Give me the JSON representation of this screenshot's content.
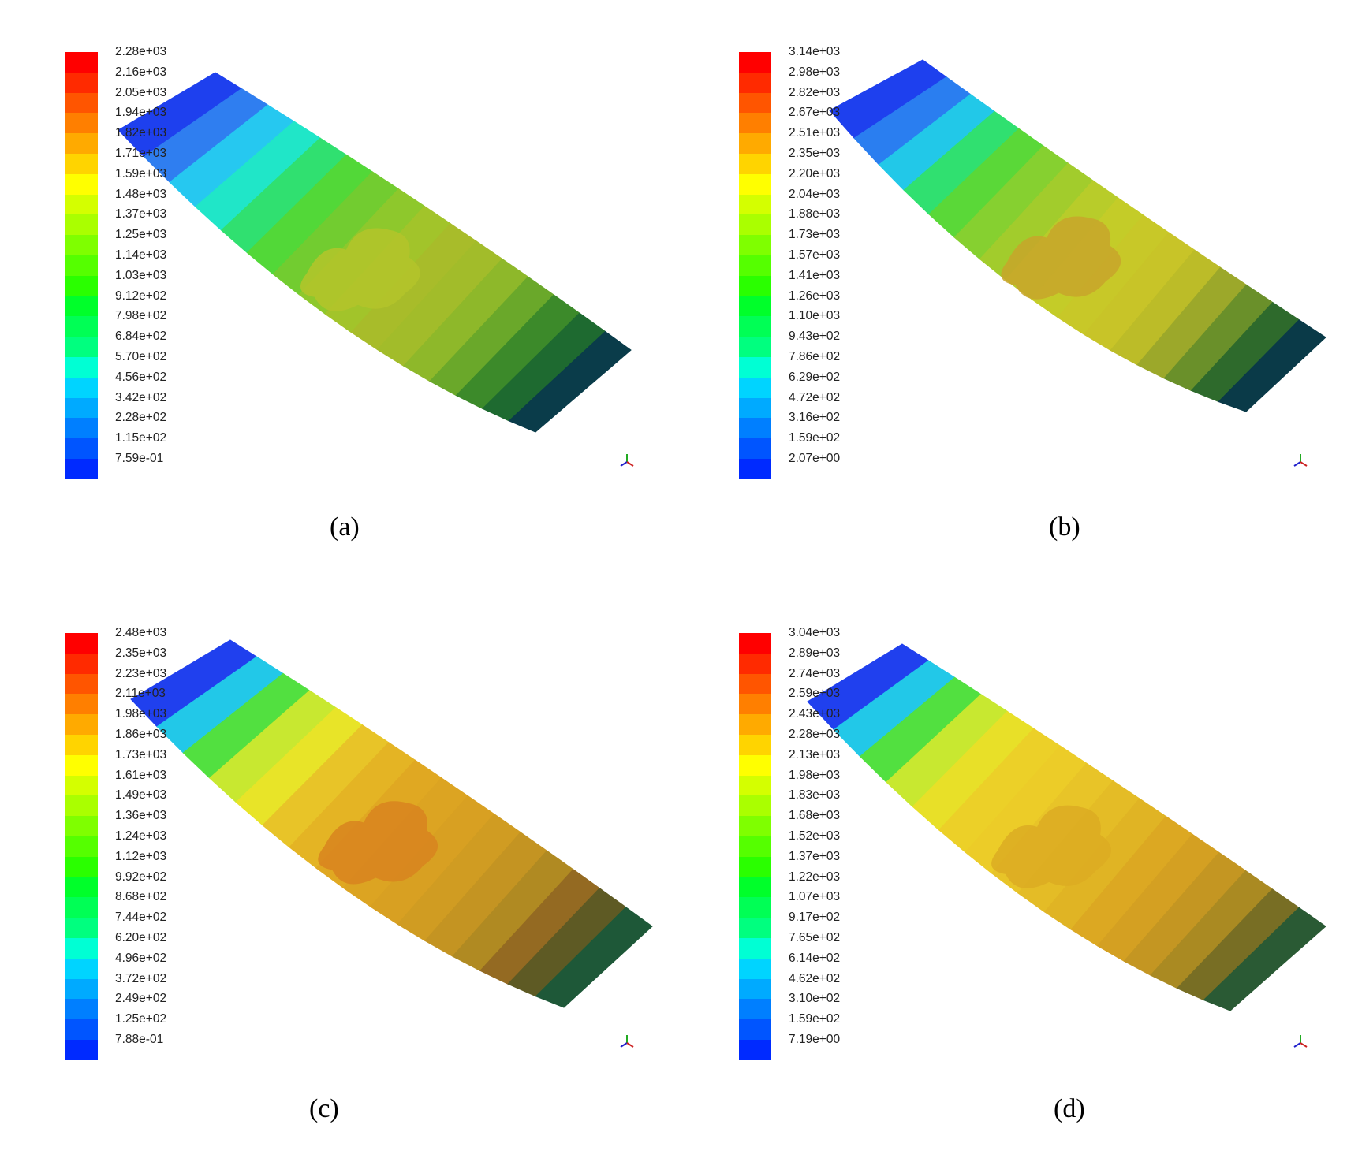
{
  "figure": {
    "panels": [
      {
        "id": "a",
        "caption": "(a)",
        "legend_labels": [
          "2.28e+03",
          "2.16e+03",
          "2.05e+03",
          "1.94e+03",
          "1.82e+03",
          "1.71e+03",
          "1.59e+03",
          "1.48e+03",
          "1.37e+03",
          "1.25e+03",
          "1.14e+03",
          "1.03e+03",
          "9.12e+02",
          "7.98e+02",
          "6.84e+02",
          "5.70e+02",
          "4.56e+02",
          "3.42e+02",
          "2.28e+02",
          "1.15e+02",
          "7.59e-01"
        ],
        "band_colors": [
          "#1e40ee",
          "#2f7ef0",
          "#26c8f0",
          "#20e6c8",
          "#30e070",
          "#52d838",
          "#72cc30",
          "#8ec82c",
          "#a2c42a",
          "#a8bc2a",
          "#a2bc2a",
          "#8eb82a",
          "#6aa82a",
          "#3c8a2a",
          "#1e6a30",
          "#0a3c4a"
        ],
        "patch_color": "#b4c42a"
      },
      {
        "id": "b",
        "caption": "(b)",
        "legend_labels": [
          "3.14e+03",
          "2.98e+03",
          "2.82e+03",
          "2.67e+03",
          "2.51e+03",
          "2.35e+03",
          "2.20e+03",
          "2.04e+03",
          "1.88e+03",
          "1.73e+03",
          "1.57e+03",
          "1.41e+03",
          "1.26e+03",
          "1.10e+03",
          "9.43e+02",
          "7.86e+02",
          "6.29e+02",
          "4.72e+02",
          "3.16e+02",
          "1.59e+02",
          "2.07e+00"
        ],
        "band_colors": [
          "#1e40ee",
          "#2a7ef0",
          "#22c8e8",
          "#30e070",
          "#5ad838",
          "#86d030",
          "#a2cc2c",
          "#b8cc2a",
          "#c4cc28",
          "#c8c828",
          "#c8c428",
          "#bcbc28",
          "#9ca82a",
          "#6a902a",
          "#2e6a2c",
          "#0a3a48"
        ],
        "patch_color": "#c8a42a"
      },
      {
        "id": "c",
        "caption": "(c)",
        "legend_labels": [
          "2.48e+03",
          "2.35e+03",
          "2.23e+03",
          "2.11e+03",
          "1.98e+03",
          "1.86e+03",
          "1.73e+03",
          "1.61e+03",
          "1.49e+03",
          "1.36e+03",
          "1.24e+03",
          "1.12e+03",
          "9.92e+02",
          "8.68e+02",
          "7.44e+02",
          "6.20e+02",
          "4.96e+02",
          "3.72e+02",
          "2.49e+02",
          "1.25e+02",
          "7.88e-01"
        ],
        "band_colors": [
          "#2040ee",
          "#22c8e8",
          "#52e040",
          "#c8e830",
          "#e8e428",
          "#e8c428",
          "#e4b424",
          "#e0a822",
          "#dca422",
          "#d8a022",
          "#d09c22",
          "#c49422",
          "#b08a22",
          "#946a22",
          "#5e5a24",
          "#1e5838"
        ],
        "patch_color": "#d8841e"
      },
      {
        "id": "d",
        "caption": "(d)",
        "legend_labels": [
          "3.04e+03",
          "2.89e+03",
          "2.74e+03",
          "2.59e+03",
          "2.43e+03",
          "2.28e+03",
          "2.13e+03",
          "1.98e+03",
          "1.83e+03",
          "1.68e+03",
          "1.52e+03",
          "1.37e+03",
          "1.22e+03",
          "1.07e+03",
          "9.17e+02",
          "7.65e+02",
          "6.14e+02",
          "4.62e+02",
          "3.10e+02",
          "1.59e+02",
          "7.19e+00"
        ],
        "band_colors": [
          "#2040ee",
          "#22c8e8",
          "#52e040",
          "#c8e830",
          "#e8e028",
          "#ecd028",
          "#eccc28",
          "#e8c428",
          "#e4bc26",
          "#e0b424",
          "#dca822",
          "#d4a022",
          "#c49622",
          "#aa8a22",
          "#786e24",
          "#2a5a34"
        ],
        "patch_color": "#dcac22"
      }
    ],
    "legend_colors": [
      "#ff0000",
      "#ff2a00",
      "#ff5500",
      "#ff7f00",
      "#ffaa00",
      "#ffd400",
      "#ffff00",
      "#d4ff00",
      "#aaff00",
      "#7fff00",
      "#55ff00",
      "#2aff00",
      "#00ff2a",
      "#00ff55",
      "#00ff7f",
      "#00ffd4",
      "#00d4ff",
      "#00aaff",
      "#007fff",
      "#0055ff",
      "#002aff"
    ]
  }
}
